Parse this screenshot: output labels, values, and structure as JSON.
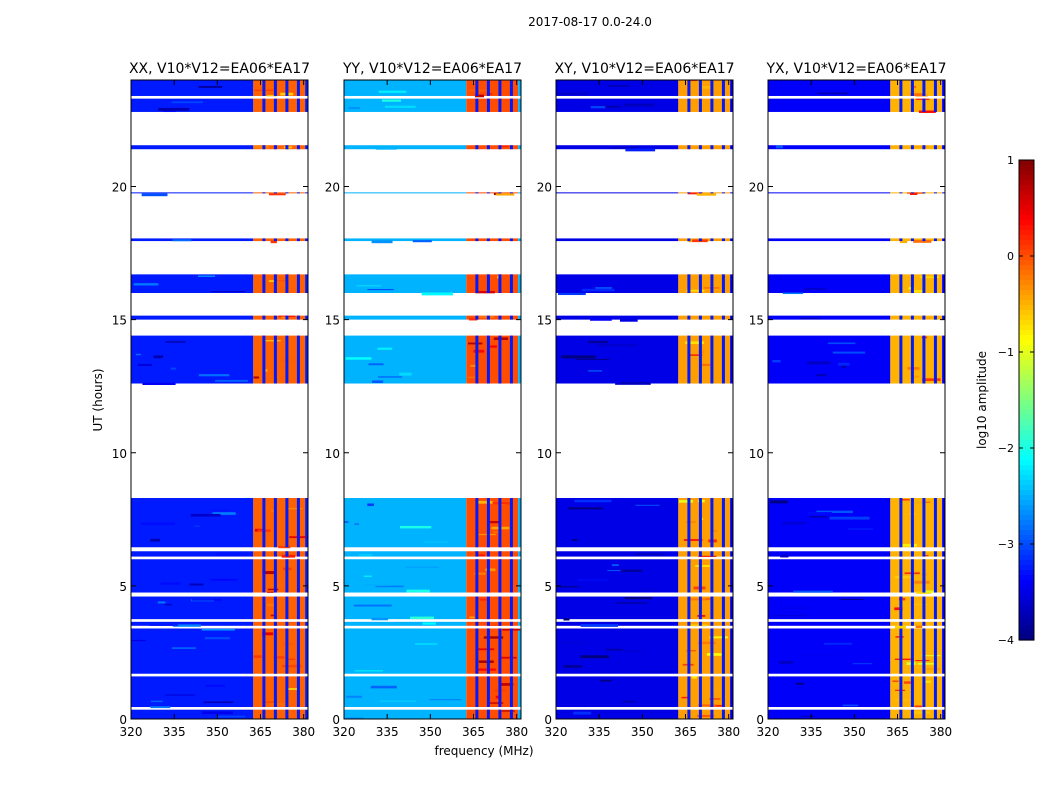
{
  "chart_data": {
    "type": "heatmap",
    "suptitle": "2017-08-17 0.0-24.0",
    "xlabel": "frequency (MHz)",
    "ylabel": "UT (hours)",
    "xlim": [
      320,
      381.5
    ],
    "ylim": [
      0,
      24
    ],
    "xticks": [
      "320",
      "335",
      "350",
      "365",
      "380"
    ],
    "xtick_values": [
      320,
      335,
      350,
      365,
      380
    ],
    "yticks": [
      "0",
      "5",
      "10",
      "15",
      "20"
    ],
    "ytick_values": [
      0,
      5,
      10,
      15,
      20
    ],
    "panels": [
      {
        "title": "XX, V10*V12=EA06*EA17",
        "level_left": 0.15,
        "level_right": 0.78
      },
      {
        "title": "YY, V10*V12=EA06*EA17",
        "level_left": 0.3,
        "level_right": 0.8
      },
      {
        "title": "XY, V10*V12=EA06*EA17",
        "level_left": 0.1,
        "level_right": 0.72
      },
      {
        "title": "YX, V10*V12=EA06*EA17",
        "level_left": 0.12,
        "level_right": 0.7
      }
    ],
    "data_time_blocks_hours": [
      [
        0.0,
        0.35
      ],
      [
        0.45,
        1.6
      ],
      [
        1.7,
        3.4
      ],
      [
        3.5,
        3.65
      ],
      [
        3.75,
        4.6
      ],
      [
        4.75,
        6.0
      ],
      [
        6.1,
        6.3
      ],
      [
        6.45,
        8.3
      ],
      [
        12.6,
        14.4
      ],
      [
        15.0,
        15.15
      ],
      [
        16.0,
        16.7
      ],
      [
        17.95,
        18.05
      ],
      [
        19.75,
        19.78
      ],
      [
        21.4,
        21.55
      ],
      [
        22.8,
        23.3
      ],
      [
        23.4,
        24.0
      ]
    ],
    "strong_band_mhz": [
      362.5,
      380.5
    ],
    "band_stripes_mhz": [
      366,
      370,
      374,
      378
    ],
    "colorbar": {
      "label": "log10 amplitude",
      "range": [
        -4,
        1
      ],
      "ticks": [
        "1",
        "0",
        "−1",
        "−2",
        "−3",
        "−4"
      ],
      "tick_values": [
        1,
        0,
        -1,
        -2,
        -3,
        -4
      ],
      "colormap": "jet"
    }
  }
}
